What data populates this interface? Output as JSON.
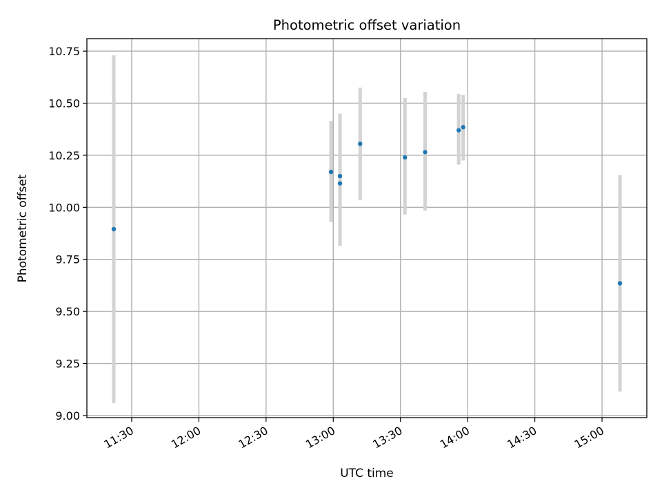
{
  "chart_data": {
    "type": "scatter",
    "title": "Photometric offset variation",
    "xlabel": "UTC time",
    "ylabel": "Photometric offset",
    "x_axis_kind": "time",
    "xlim": [
      "11:10",
      "15:20"
    ],
    "ylim": [
      8.99,
      10.81
    ],
    "x_ticks": [
      "11:30",
      "12:00",
      "12:30",
      "13:00",
      "13:30",
      "14:00",
      "14:30",
      "15:00"
    ],
    "y_ticks": [
      "9.00",
      "9.25",
      "9.50",
      "9.75",
      "10.00",
      "10.25",
      "10.50",
      "10.75"
    ],
    "grid": true,
    "colors": {
      "point": "#1f77b4",
      "error_bar": "#d3d3d3"
    },
    "points": [
      {
        "time": "11:22",
        "y": 9.895,
        "y_low": 9.06,
        "y_high": 10.73
      },
      {
        "time": "12:59",
        "y": 10.17,
        "y_low": 9.93,
        "y_high": 10.415
      },
      {
        "time": "13:03",
        "y": 10.15,
        "y_low": 9.85,
        "y_high": 10.45
      },
      {
        "time": "13:03",
        "y": 10.115,
        "y_low": 9.815,
        "y_high": 10.415
      },
      {
        "time": "13:12",
        "y": 10.305,
        "y_low": 10.035,
        "y_high": 10.575
      },
      {
        "time": "13:32",
        "y": 10.24,
        "y_low": 9.965,
        "y_high": 10.525
      },
      {
        "time": "13:41",
        "y": 10.265,
        "y_low": 9.985,
        "y_high": 10.555
      },
      {
        "time": "13:56",
        "y": 10.37,
        "y_low": 10.205,
        "y_high": 10.545
      },
      {
        "time": "13:58",
        "y": 10.385,
        "y_low": 10.225,
        "y_high": 10.54
      },
      {
        "time": "15:08",
        "y": 9.635,
        "y_low": 9.115,
        "y_high": 10.155
      }
    ]
  }
}
